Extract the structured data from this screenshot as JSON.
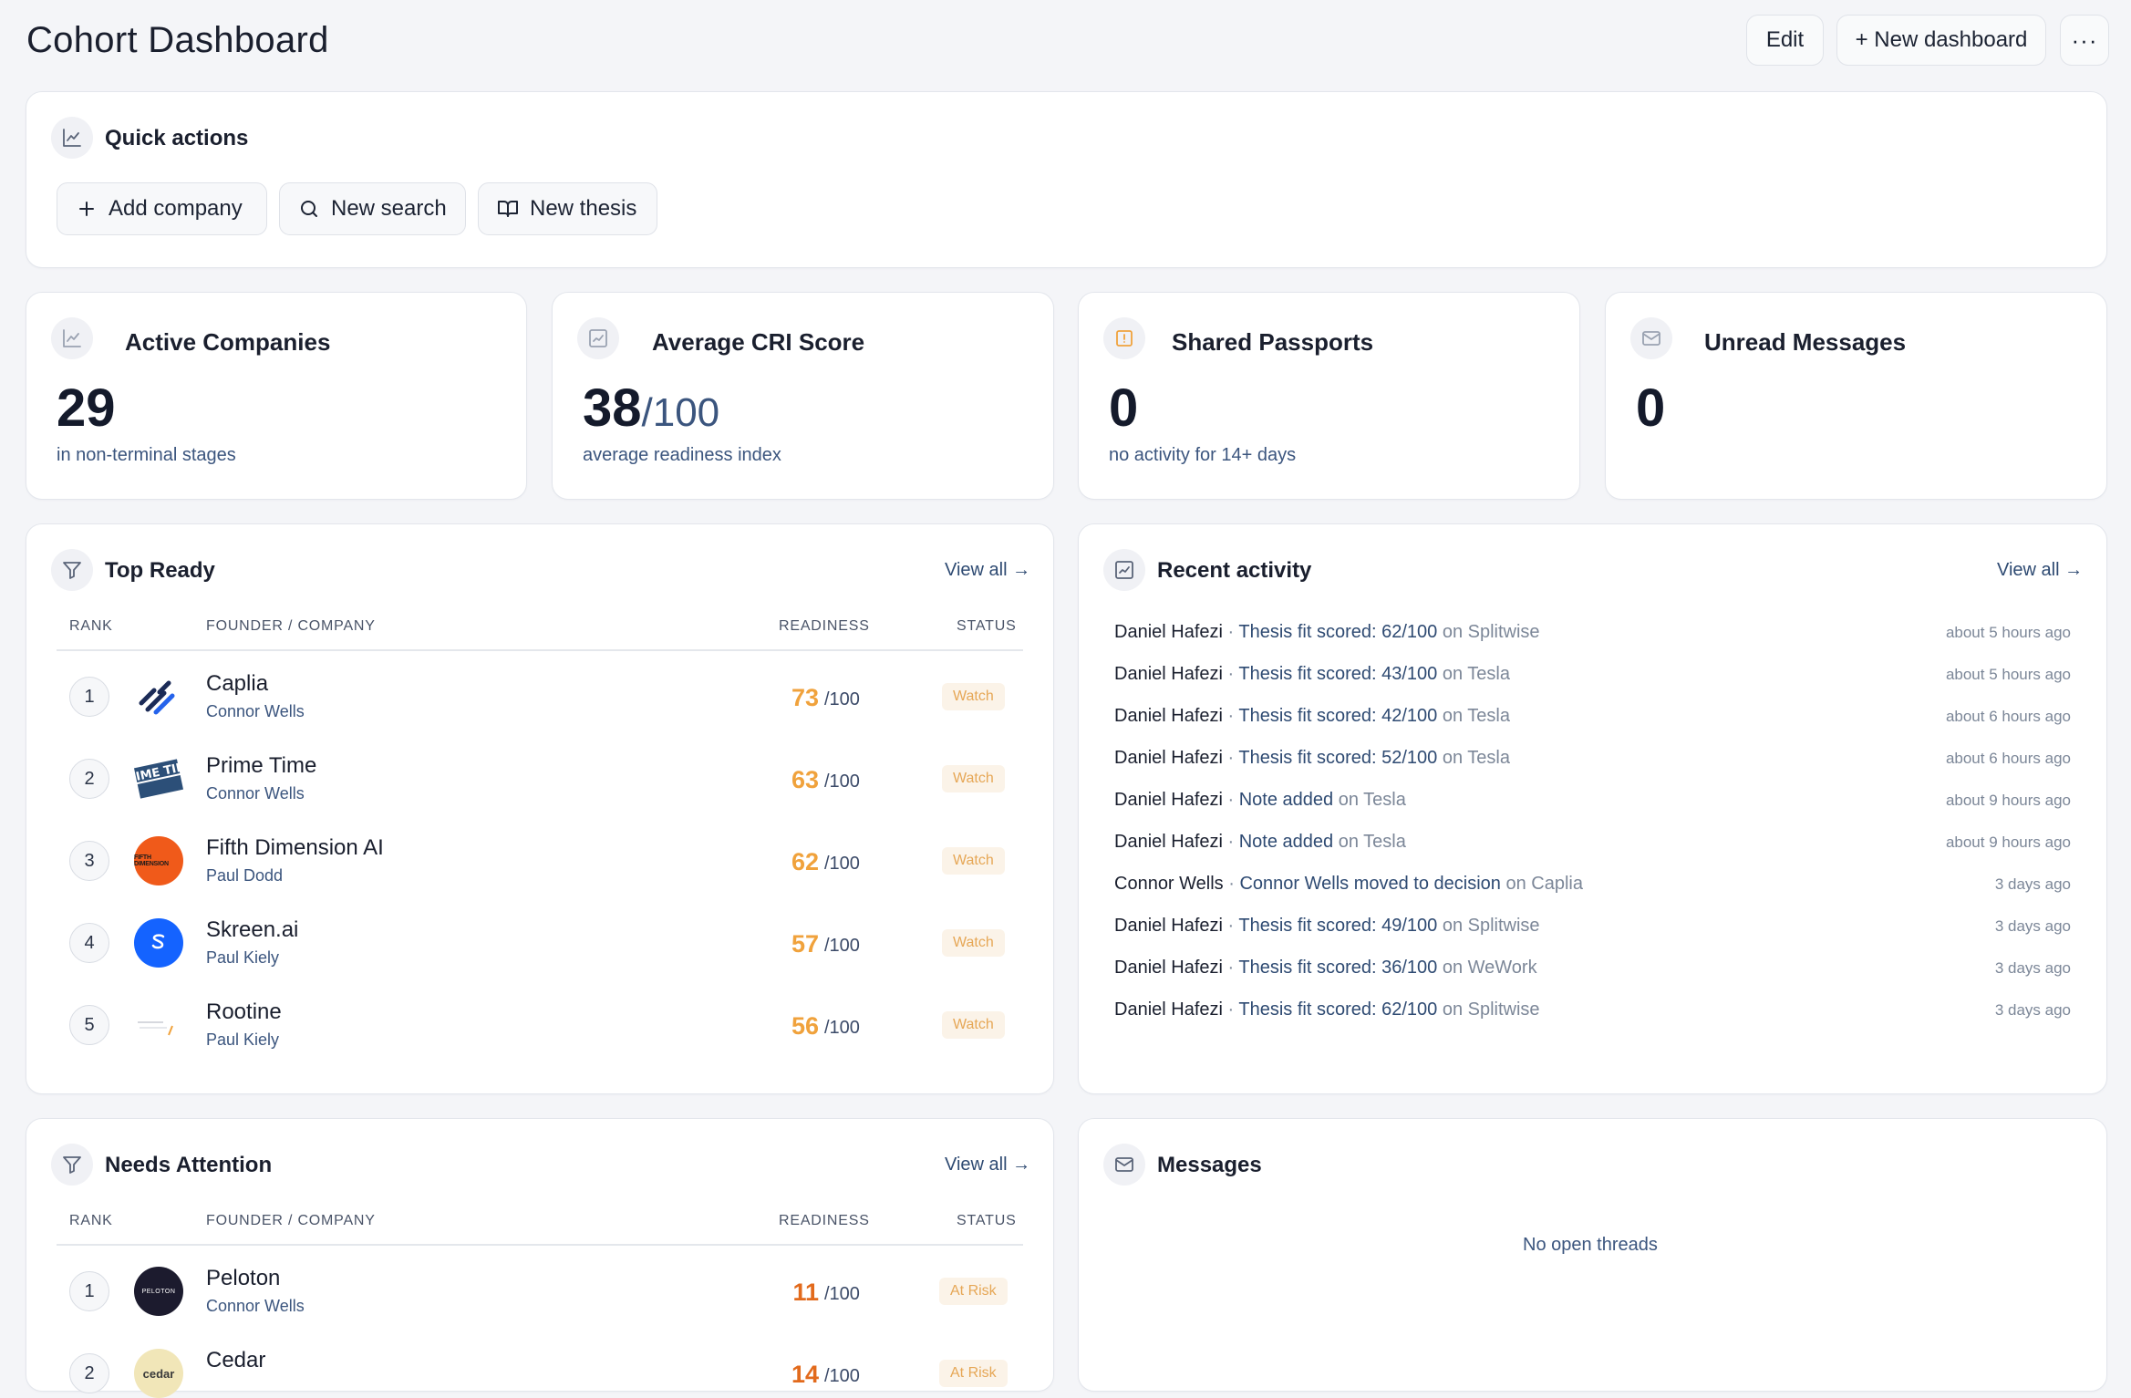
{
  "header": {
    "title": "Cohort Dashboard",
    "edit_label": "Edit",
    "new_dashboard_label": "+ New dashboard",
    "more_label": "···"
  },
  "quick_actions": {
    "title": "Quick actions",
    "buttons": [
      {
        "label": "Add company",
        "icon": "plus-icon"
      },
      {
        "label": "New search",
        "icon": "search-icon"
      },
      {
        "label": "New thesis",
        "icon": "book-icon"
      }
    ]
  },
  "stats": [
    {
      "title": "Active Companies",
      "value": "29",
      "suffix": "",
      "sub": "in non-terminal stages",
      "icon": "line-chart-icon"
    },
    {
      "title": "Average CRI Score",
      "value": "38",
      "suffix": "/100",
      "sub": "average readiness index",
      "icon": "chart-square-icon"
    },
    {
      "title": "Shared Passports",
      "value": "0",
      "suffix": "",
      "sub": "no activity for 14+ days",
      "icon": "alert-icon"
    },
    {
      "title": "Unread Messages",
      "value": "0",
      "suffix": "",
      "sub": "",
      "icon": "mail-icon"
    }
  ],
  "top_ready": {
    "title": "Top Ready",
    "view_all": "View all →",
    "columns": {
      "rank": "RANK",
      "company": "FOUNDER / COMPANY",
      "readiness": "READINESS",
      "status": "STATUS"
    },
    "rows": [
      {
        "rank": "1",
        "name": "Caplia",
        "founder": "Connor Wells",
        "score": "73",
        "den": "/100",
        "status": "Watch"
      },
      {
        "rank": "2",
        "name": "Prime Time",
        "founder": "Connor Wells",
        "score": "63",
        "den": "/100",
        "status": "Watch"
      },
      {
        "rank": "3",
        "name": "Fifth Dimension AI",
        "founder": "Paul Dodd",
        "score": "62",
        "den": "/100",
        "status": "Watch"
      },
      {
        "rank": "4",
        "name": "Skreen.ai",
        "founder": "Paul Kiely",
        "score": "57",
        "den": "/100",
        "status": "Watch"
      },
      {
        "rank": "5",
        "name": "Rootine",
        "founder": "Paul Kiely",
        "score": "56",
        "den": "/100",
        "status": "Watch"
      }
    ]
  },
  "recent_activity": {
    "title": "Recent activity",
    "view_all": "View all →",
    "items": [
      {
        "user": "Daniel Hafezi",
        "text": "Thesis fit scored: 62/100",
        "target": "on Splitwise",
        "time": "about 5 hours ago"
      },
      {
        "user": "Daniel Hafezi",
        "text": "Thesis fit scored: 43/100",
        "target": "on Tesla",
        "time": "about 5 hours ago"
      },
      {
        "user": "Daniel Hafezi",
        "text": "Thesis fit scored: 42/100",
        "target": "on Tesla",
        "time": "about 6 hours ago"
      },
      {
        "user": "Daniel Hafezi",
        "text": "Thesis fit scored: 52/100",
        "target": "on Tesla",
        "time": "about 6 hours ago"
      },
      {
        "user": "Daniel Hafezi",
        "text": "Note added",
        "target": "on Tesla",
        "time": "about 9 hours ago"
      },
      {
        "user": "Daniel Hafezi",
        "text": "Note added",
        "target": "on Tesla",
        "time": "about 9 hours ago"
      },
      {
        "user": "Connor Wells",
        "text": "Connor Wells moved to decision",
        "target": "on Caplia",
        "time": "3 days ago"
      },
      {
        "user": "Daniel Hafezi",
        "text": "Thesis fit scored: 49/100",
        "target": "on Splitwise",
        "time": "3 days ago"
      },
      {
        "user": "Daniel Hafezi",
        "text": "Thesis fit scored: 36/100",
        "target": "on WeWork",
        "time": "3 days ago"
      },
      {
        "user": "Daniel Hafezi",
        "text": "Thesis fit scored: 62/100",
        "target": "on Splitwise",
        "time": "3 days ago"
      }
    ]
  },
  "needs_attention": {
    "title": "Needs Attention",
    "view_all": "View all →",
    "columns": {
      "rank": "RANK",
      "company": "FOUNDER / COMPANY",
      "readiness": "READINESS",
      "status": "STATUS"
    },
    "rows": [
      {
        "rank": "1",
        "name": "Peloton",
        "founder": "Connor Wells",
        "score": "11",
        "den": "/100",
        "status": "At Risk"
      },
      {
        "rank": "2",
        "name": "Cedar",
        "founder": "",
        "score": "14",
        "den": "/100",
        "status": "At Risk"
      }
    ]
  },
  "messages": {
    "title": "Messages",
    "empty": "No open threads"
  },
  "logos": {
    "fifth_dimension": "FIFTH DIMENSION",
    "prime_time": "RIME TIM",
    "peloton": "PELOTON",
    "cedar": "cedar"
  },
  "colors": {
    "accent_orange": "#f0a23c",
    "risk_orange": "#e26a1c",
    "link": "#2e4a72"
  }
}
